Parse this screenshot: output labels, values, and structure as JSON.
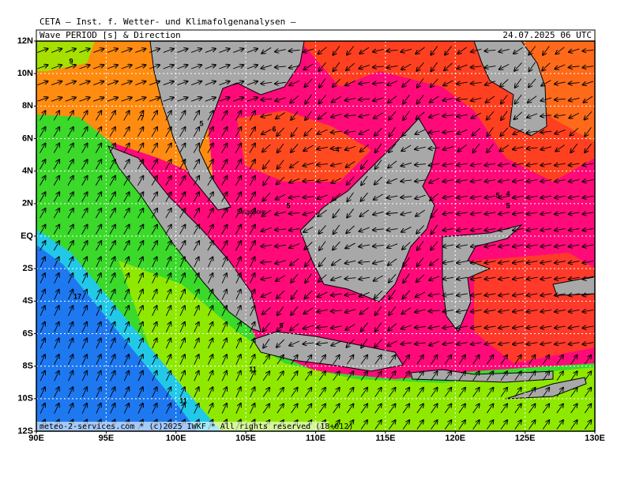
{
  "header": {
    "institute": "CETA — Inst. f. Wetter- und Klimafolgenanalysen —",
    "product": "Wave PERIOD [s] & Direction",
    "valid": "24.07.2025 06 UTC"
  },
  "axes": {
    "lat": [
      "12N",
      "10N",
      "8N",
      "6N",
      "4N",
      "2N",
      "EQ",
      "2S",
      "4S",
      "6S",
      "8S",
      "10S",
      "12S"
    ],
    "lon": [
      "90E",
      "95E",
      "100E",
      "105E",
      "110E",
      "115E",
      "120E",
      "125E",
      "130E"
    ]
  },
  "contour_labels": [
    9,
    7,
    5,
    6,
    4,
    5,
    5,
    4,
    5,
    17,
    11,
    11,
    5
  ],
  "places": [
    "Singapore"
  ],
  "footer": "meteo-2-services.com * (c)2025 IWKF * All rights reserved (18+012)"
}
